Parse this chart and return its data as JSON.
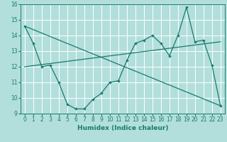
{
  "xlabel": "Humidex (Indice chaleur)",
  "background_color": "#b2dfdb",
  "grid_color": "#ffffff",
  "line_color": "#1a7a6e",
  "xlim": [
    -0.5,
    23.5
  ],
  "ylim": [
    9,
    16
  ],
  "yticks": [
    9,
    10,
    11,
    12,
    13,
    14,
    15,
    16
  ],
  "xticks": [
    0,
    1,
    2,
    3,
    4,
    5,
    6,
    7,
    8,
    9,
    10,
    11,
    12,
    13,
    14,
    15,
    16,
    17,
    18,
    19,
    20,
    21,
    22,
    23
  ],
  "series1_x": [
    0,
    1,
    2,
    3,
    4,
    5,
    6,
    7,
    8,
    9,
    10,
    11,
    12,
    13,
    14,
    15,
    16,
    17,
    18,
    19,
    20,
    21,
    22,
    23
  ],
  "series1_y": [
    14.6,
    13.5,
    12.0,
    12.1,
    11.0,
    9.6,
    9.3,
    9.3,
    9.9,
    10.3,
    11.0,
    11.1,
    12.4,
    13.5,
    13.7,
    14.0,
    13.5,
    12.7,
    14.0,
    15.8,
    13.6,
    13.7,
    12.1,
    9.5
  ],
  "series2_x": [
    0,
    23
  ],
  "series2_y": [
    14.6,
    9.5
  ],
  "series3_x": [
    0,
    23
  ],
  "series3_y": [
    12.0,
    13.6
  ]
}
